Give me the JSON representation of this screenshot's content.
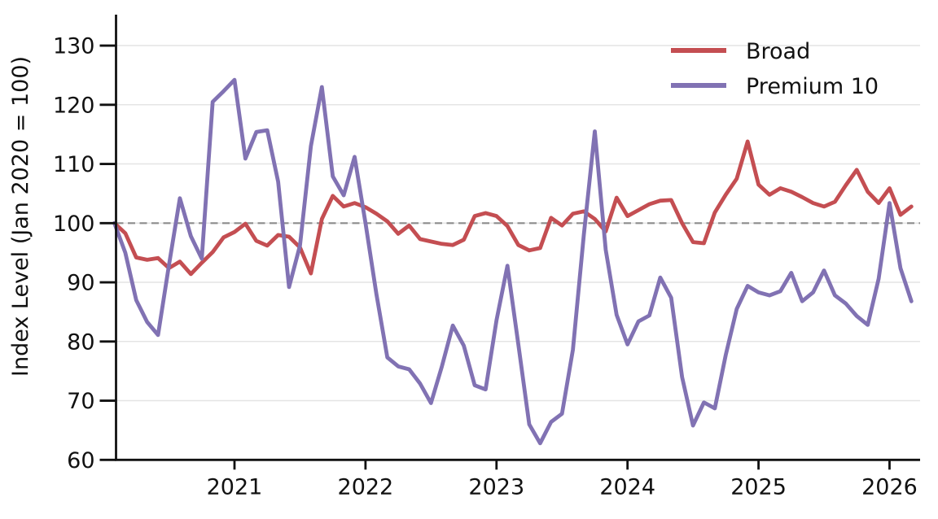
{
  "chart_data": {
    "type": "line",
    "title": "",
    "ylabel": "Index Level (Jan 2020 = 100)",
    "xlabel": "",
    "frequency": "monthly",
    "x_start": "2020-01",
    "x_end": "2026-02",
    "ylim": [
      60,
      135
    ],
    "grid": "horizontal-only",
    "legend_position": "upper-right",
    "legend_frame": false,
    "y_ticks": [
      60,
      70,
      80,
      90,
      100,
      110,
      120,
      130
    ],
    "x_tick_labels": [
      "2021",
      "2022",
      "2023",
      "2024",
      "2025",
      "2026"
    ],
    "reference_line": {
      "value": 100,
      "style": "dashed",
      "color": "#8c8c8c"
    },
    "colors": {
      "broad": "#c44e52",
      "premium10": "#8172b3",
      "grid": "#e4e4e4",
      "spine": "#111111",
      "background": "#ffffff"
    },
    "months": [
      "2020-01",
      "2020-02",
      "2020-03",
      "2020-04",
      "2020-05",
      "2020-06",
      "2020-07",
      "2020-08",
      "2020-09",
      "2020-10",
      "2020-11",
      "2020-12",
      "2021-01",
      "2021-02",
      "2021-03",
      "2021-04",
      "2021-05",
      "2021-06",
      "2021-07",
      "2021-08",
      "2021-09",
      "2021-10",
      "2021-11",
      "2021-12",
      "2022-01",
      "2022-02",
      "2022-03",
      "2022-04",
      "2022-05",
      "2022-06",
      "2022-07",
      "2022-08",
      "2022-09",
      "2022-10",
      "2022-11",
      "2022-12",
      "2023-01",
      "2023-02",
      "2023-03",
      "2023-04",
      "2023-05",
      "2023-06",
      "2023-07",
      "2023-08",
      "2023-09",
      "2023-10",
      "2023-11",
      "2023-12",
      "2024-01",
      "2024-02",
      "2024-03",
      "2024-04",
      "2024-05",
      "2024-06",
      "2024-07",
      "2024-08",
      "2024-09",
      "2024-10",
      "2024-11",
      "2024-12",
      "2025-01",
      "2025-02",
      "2025-03",
      "2025-04",
      "2025-05",
      "2025-06",
      "2025-07",
      "2025-08",
      "2025-09",
      "2025-10",
      "2025-11",
      "2025-12",
      "2026-01",
      "2026-02"
    ],
    "series": [
      {
        "name": "Broad",
        "color": "#c44e52",
        "values": [
          100.0,
          98.3,
          94.2,
          93.8,
          94.1,
          92.4,
          93.5,
          91.4,
          93.3,
          95.1,
          97.6,
          98.5,
          99.9,
          97.0,
          96.2,
          98.0,
          97.7,
          95.9,
          91.5,
          100.7,
          104.6,
          102.8,
          103.4,
          102.7,
          101.6,
          100.3,
          98.2,
          99.6,
          97.3,
          96.9,
          96.5,
          96.3,
          97.2,
          101.2,
          101.7,
          101.2,
          99.5,
          96.3,
          95.4,
          95.8,
          100.9,
          99.6,
          101.6,
          102.0,
          100.7,
          98.6,
          104.3,
          101.2,
          102.2,
          103.2,
          103.8,
          103.9,
          100.0,
          96.8,
          96.6,
          101.8,
          104.8,
          107.5,
          113.8,
          106.5,
          104.8,
          105.9,
          105.3,
          104.4,
          103.4,
          102.8,
          103.6,
          106.4,
          109.0,
          105.3,
          103.4,
          105.9,
          101.4,
          102.8
        ]
      },
      {
        "name": "Premium 10",
        "color": "#8172b3",
        "values": [
          100.0,
          95.0,
          87.0,
          83.3,
          81.1,
          92.9,
          104.2,
          97.8,
          94.0,
          120.5,
          122.3,
          124.2,
          110.9,
          115.4,
          115.7,
          107.0,
          89.2,
          96.2,
          113.0,
          123.0,
          107.9,
          104.7,
          111.2,
          100.0,
          88.0,
          77.3,
          75.8,
          75.3,
          72.9,
          69.6,
          75.8,
          82.7,
          79.3,
          72.6,
          71.9,
          83.6,
          92.8,
          79.5,
          66.0,
          62.8,
          66.4,
          67.8,
          78.6,
          98.0,
          115.5,
          95.5,
          84.5,
          79.5,
          83.4,
          84.4,
          90.8,
          87.4,
          74.0,
          65.8,
          69.7,
          68.7,
          77.7,
          85.5,
          89.4,
          88.3,
          87.8,
          88.5,
          91.6,
          86.8,
          88.3,
          92.0,
          87.8,
          86.4,
          84.3,
          82.8,
          90.6,
          103.4,
          92.4,
          86.8
        ]
      }
    ]
  }
}
